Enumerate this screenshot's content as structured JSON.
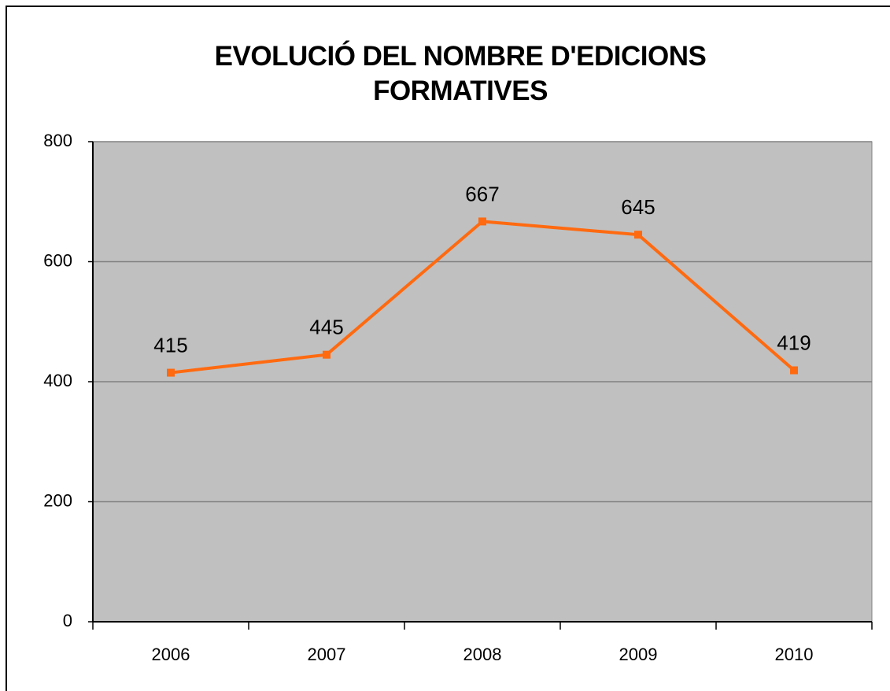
{
  "chart_data": {
    "type": "line",
    "title": "EVOLUCIÓ DEL NOMBRE D'EDICIONS FORMATIVES",
    "categories": [
      "2006",
      "2007",
      "2008",
      "2009",
      "2010"
    ],
    "series": [
      {
        "color": "#ff6a10",
        "values": [
          415,
          445,
          667,
          645,
          419
        ]
      }
    ],
    "ylim": [
      0,
      800
    ],
    "yticks": [
      0,
      200,
      400,
      600,
      800
    ],
    "grid": true,
    "data_labels": true
  }
}
